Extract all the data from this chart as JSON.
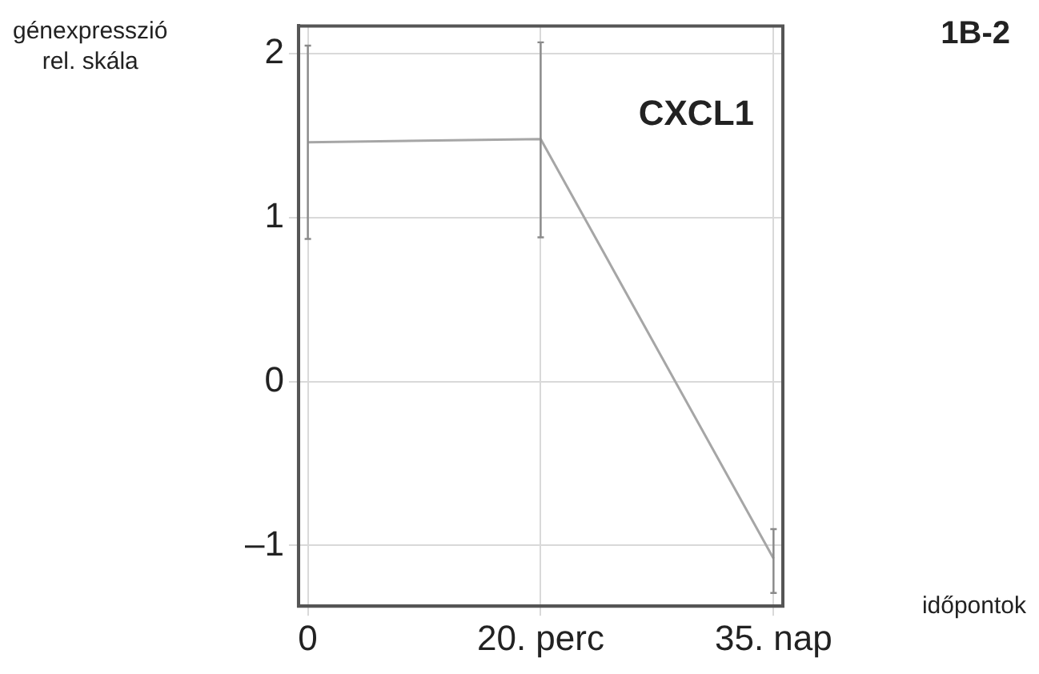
{
  "chart_data": {
    "type": "line",
    "title": "1B-2",
    "xlabel": "időpontok",
    "ylabel": "génexpresszió\nrel. skála",
    "annotations": [
      "CXCL1"
    ],
    "categories": [
      "0",
      "20. perc",
      "35. nap"
    ],
    "series": [
      {
        "color": "#a6a6a6",
        "values": [
          1.46,
          1.48,
          -1.08
        ],
        "errors": [
          [
            0.87,
            2.05
          ],
          [
            0.88,
            2.07
          ],
          [
            -1.29,
            -0.9
          ]
        ]
      }
    ],
    "ylim": [
      -1.37,
      2.17
    ],
    "yticks": [
      {
        "value": -1,
        "label": "–1"
      },
      0,
      1,
      2
    ],
    "grid": true,
    "legend": false,
    "marker": "none",
    "line_style": "solid"
  }
}
